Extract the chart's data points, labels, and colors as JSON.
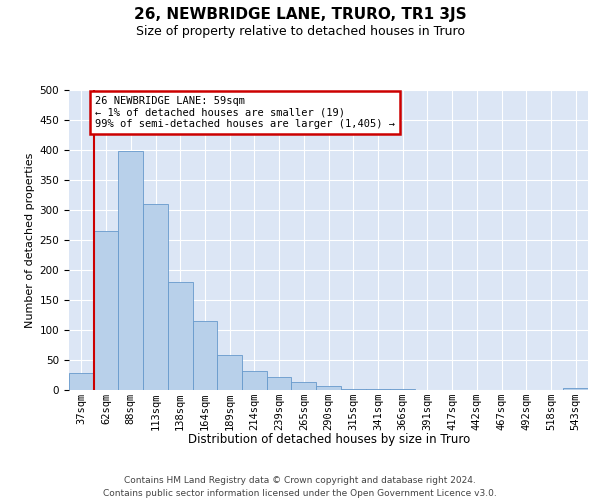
{
  "title": "26, NEWBRIDGE LANE, TRURO, TR1 3JS",
  "subtitle": "Size of property relative to detached houses in Truro",
  "xlabel": "Distribution of detached houses by size in Truro",
  "ylabel": "Number of detached properties",
  "footer_line1": "Contains HM Land Registry data © Crown copyright and database right 2024.",
  "footer_line2": "Contains public sector information licensed under the Open Government Licence v3.0.",
  "bar_categories": [
    "37sqm",
    "62sqm",
    "88sqm",
    "113sqm",
    "138sqm",
    "164sqm",
    "189sqm",
    "214sqm",
    "239sqm",
    "265sqm",
    "290sqm",
    "315sqm",
    "341sqm",
    "366sqm",
    "391sqm",
    "417sqm",
    "442sqm",
    "467sqm",
    "492sqm",
    "518sqm",
    "543sqm"
  ],
  "bar_values": [
    28,
    265,
    398,
    310,
    180,
    115,
    58,
    32,
    22,
    14,
    7,
    2,
    1,
    1,
    0,
    0,
    0,
    0,
    0,
    0,
    4
  ],
  "bar_color": "#b8d0ea",
  "bar_edge_color": "#6699cc",
  "bg_color": "#dce6f5",
  "annotation_line1": "26 NEWBRIDGE LANE: 59sqm",
  "annotation_line2": "← 1% of detached houses are smaller (19)",
  "annotation_line3": "99% of semi-detached houses are larger (1,405) →",
  "annotation_box_facecolor": "#ffffff",
  "annotation_box_edgecolor": "#cc0000",
  "vline_color": "#cc0000",
  "vline_x": 0.5,
  "ylim": [
    0,
    500
  ],
  "yticks": [
    0,
    50,
    100,
    150,
    200,
    250,
    300,
    350,
    400,
    450,
    500
  ],
  "title_fontsize": 11,
  "subtitle_fontsize": 9,
  "ylabel_fontsize": 8,
  "xlabel_fontsize": 8.5,
  "tick_fontsize": 7.5,
  "annotation_fontsize": 7.5,
  "footer_fontsize": 6.5
}
